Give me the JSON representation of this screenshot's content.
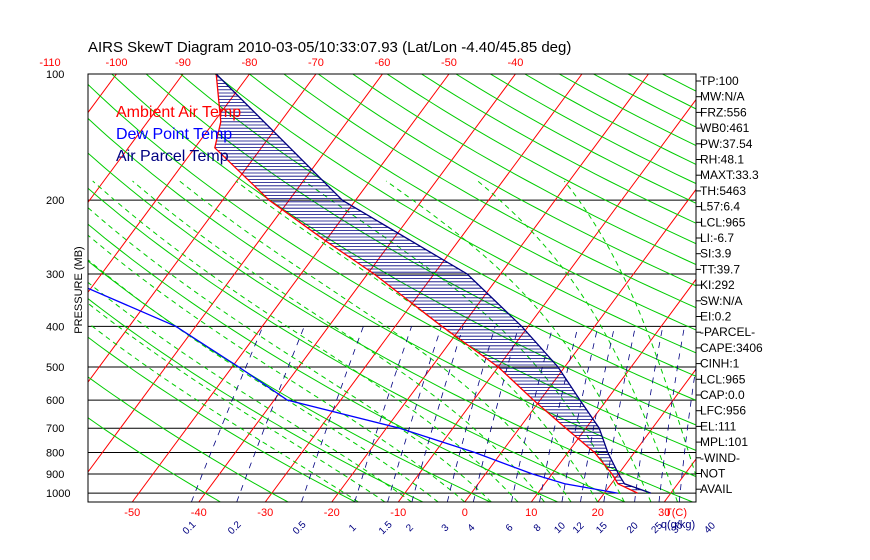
{
  "chart_data": {
    "type": "line",
    "title": "AIRS SkewT Diagram 2010-03-05/10:33:07.93 (Lat/Lon -4.40/45.85 deg)",
    "ylabel": "PRESSURE (MB)",
    "xlabel_bottom_unit": "T(C)",
    "xlabel_mixing_unit": "q(g/kg)",
    "y_log_scale": true,
    "ylim": [
      1050,
      100
    ],
    "xlim_bottom": [
      -55,
      38
    ],
    "pressure_ticks": [
      "100",
      "200",
      "300",
      "400",
      "500",
      "600",
      "700",
      "800",
      "900",
      "1000"
    ],
    "pressure_levels": [
      100,
      200,
      300,
      400,
      500,
      600,
      700,
      800,
      900,
      1000
    ],
    "bottom_temp_ticks": [
      "-50",
      "-40",
      "-30",
      "-20",
      "-10",
      "0",
      "10",
      "20",
      "30"
    ],
    "top_temp_ticks": [
      "-120",
      "-110",
      "-100",
      "-90",
      "-80",
      "-70",
      "-60",
      "-50",
      "-40"
    ],
    "mixing_ratio_ticks": [
      "0.1",
      "0.2",
      "0.5",
      "1",
      "1.5",
      "2",
      "3",
      "4",
      "6",
      "8",
      "10",
      "12",
      "15",
      "20",
      "25",
      "30",
      "40"
    ],
    "legend": [
      "Ambient Air Temp",
      "Dew Point Temp",
      "Air Parcel Temp"
    ],
    "legend_position": "top-left",
    "colors": {
      "ambient": "#ff0000",
      "dewpoint": "#0000ff",
      "parcel": "#000080",
      "isotherm": "#ff0000",
      "dry_adiabat": "#00cc00",
      "moist_adiabat": "#00cc00",
      "mixing_ratio": "#000080",
      "hatch": "#000080",
      "top_axis": "#ff0000",
      "bottom_axis": "#ff0000",
      "mixing_axis": "#000080"
    },
    "series": [
      {
        "name": "Ambient Air Temp",
        "points": [
          [
            100,
            -85
          ],
          [
            130,
            -79
          ],
          [
            150,
            -77
          ],
          [
            200,
            -63
          ],
          [
            250,
            -50
          ],
          [
            300,
            -39
          ],
          [
            400,
            -23
          ],
          [
            500,
            -10
          ],
          [
            600,
            -1
          ],
          [
            700,
            7
          ],
          [
            800,
            14
          ],
          [
            900,
            19
          ],
          [
            950,
            21
          ],
          [
            1000,
            25
          ]
        ]
      },
      {
        "name": "Dew Point Temp",
        "points": [
          [
            100,
            -112
          ],
          [
            150,
            -109
          ],
          [
            175,
            -109
          ],
          [
            200,
            -104
          ],
          [
            260,
            -100
          ],
          [
            300,
            -87
          ],
          [
            400,
            -63
          ],
          [
            500,
            -49
          ],
          [
            600,
            -38
          ],
          [
            700,
            -18
          ],
          [
            800,
            -4
          ],
          [
            900,
            7
          ],
          [
            950,
            13
          ],
          [
            1000,
            22
          ]
        ]
      },
      {
        "name": "Air Parcel Temp",
        "points": [
          [
            100,
            -85
          ],
          [
            200,
            -52
          ],
          [
            300,
            -25
          ],
          [
            400,
            -11
          ],
          [
            500,
            -1
          ],
          [
            600,
            6
          ],
          [
            700,
            12
          ],
          [
            800,
            16
          ],
          [
            900,
            20
          ],
          [
            950,
            22
          ],
          [
            1000,
            27
          ]
        ]
      }
    ],
    "annotations": [
      "TP:100",
      "MW:N/A",
      "FRZ:556",
      "WB0:461",
      "PW:37.54",
      "RH:48.1",
      "MAXT:33.3",
      "TH:5463",
      "L57:6.4",
      "LCL:965",
      "LI:-6.7",
      "SI:3.9",
      "TT:39.7",
      "KI:292",
      "SW:N/A",
      "EI:0.2",
      "-PARCEL-",
      "CAPE:3406",
      "CINH:1",
      "LCL:965",
      "CAP:0.0",
      "LFC:956",
      "EL:111",
      "MPL:101",
      "-WIND-",
      "NOT",
      "AVAIL"
    ]
  }
}
